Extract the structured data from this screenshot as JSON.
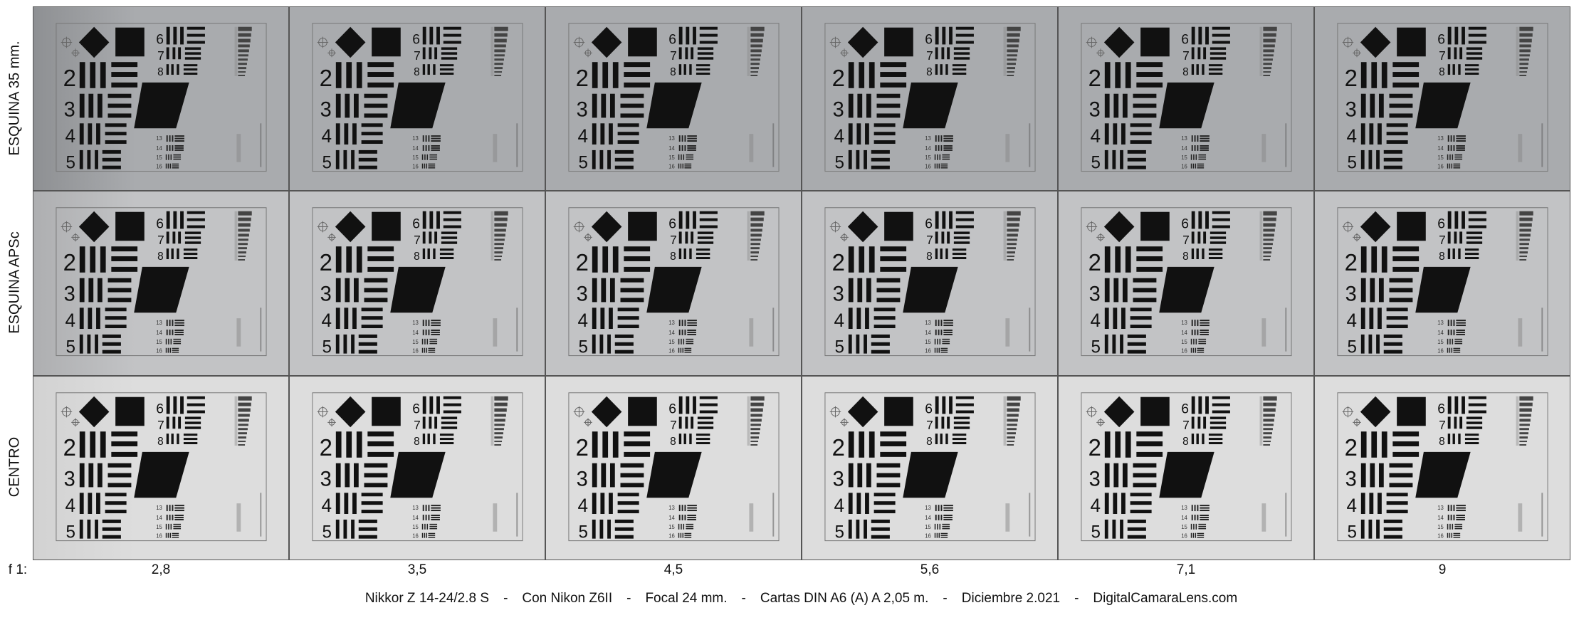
{
  "rows": [
    {
      "label": "ESQUINA 35 mm.",
      "tone": "#a9abae",
      "tone_edge": "#8e9093"
    },
    {
      "label": "ESQUINA APSc",
      "tone": "#c2c3c5",
      "tone_edge": "#aeafb1"
    },
    {
      "label": "CENTRO",
      "tone": "#dddddd",
      "tone_edge": "#d2d2d2"
    }
  ],
  "aperture_prefix": "f 1:",
  "apertures": [
    "2,8",
    "3,5",
    "4,5",
    "5,6",
    "7,1",
    "9"
  ],
  "caption_parts": [
    "Nikkor Z 14-24/2.8 S",
    "Con Nikon Z6II",
    "Focal 24 mm.",
    "Cartas DIN A6 (A) A 2,05 m.",
    "Diciembre 2.021",
    "DigitalCamaraLens.com"
  ],
  "caption_separator": "-",
  "target": {
    "group_numbers": [
      "2",
      "3",
      "4",
      "5",
      "6",
      "7",
      "8"
    ],
    "small_numbers": [
      "13",
      "14",
      "15",
      "16"
    ],
    "ink_color": "#111111"
  }
}
